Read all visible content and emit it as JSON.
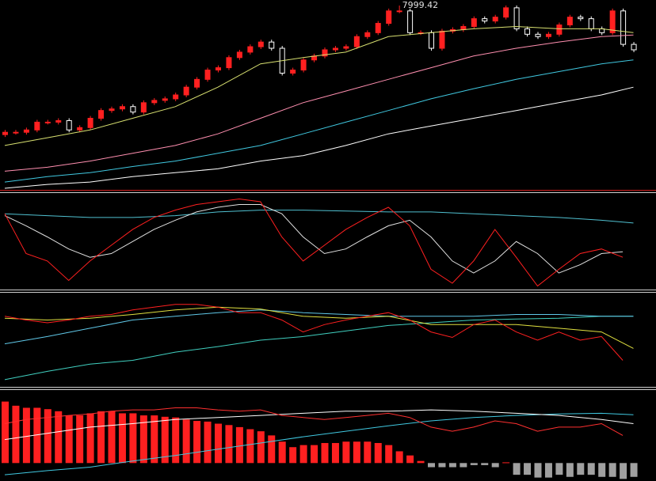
{
  "chart_data": [
    {
      "type": "candlestick",
      "ylim": [
        5650,
        8050
      ],
      "up_color": "#ff2020",
      "down_color": "#ffffff",
      "open": [
        6340,
        6370,
        6370,
        6400,
        6500,
        6500,
        6520,
        6400,
        6430,
        6550,
        6650,
        6670,
        6700,
        6630,
        6750,
        6780,
        6800,
        6850,
        6950,
        7050,
        7170,
        7200,
        7330,
        7400,
        7470,
        7530,
        7450,
        7130,
        7170,
        7300,
        7350,
        7430,
        7450,
        7470,
        7600,
        7650,
        7770,
        7930,
        7930,
        7650,
        7650,
        7450,
        7670,
        7690,
        7730,
        7830,
        7800,
        7850,
        7970,
        7700,
        7630,
        7600,
        7630,
        7750,
        7850,
        7830,
        7700,
        7650,
        7930,
        7500
      ],
      "high": [
        6400,
        6400,
        6430,
        6530,
        6530,
        6550,
        6550,
        6460,
        6580,
        6680,
        6700,
        6730,
        6730,
        6780,
        6810,
        6830,
        6880,
        6980,
        7080,
        7200,
        7230,
        7360,
        7430,
        7500,
        7560,
        7560,
        7480,
        7200,
        7330,
        7380,
        7460,
        7480,
        7500,
        7630,
        7680,
        7800,
        7960,
        7999.42,
        7960,
        7680,
        7680,
        7700,
        7720,
        7760,
        7860,
        7860,
        7880,
        8000,
        8000,
        7730,
        7660,
        7660,
        7780,
        7880,
        7880,
        7860,
        7730,
        7960,
        7960,
        7530
      ],
      "low": [
        6310,
        6340,
        6340,
        6370,
        6470,
        6470,
        6370,
        6370,
        6400,
        6520,
        6620,
        6640,
        6600,
        6600,
        6720,
        6750,
        6770,
        6820,
        6920,
        7020,
        7140,
        7170,
        7300,
        7370,
        7440,
        7420,
        7100,
        7100,
        7140,
        7270,
        7320,
        7400,
        7420,
        7440,
        7570,
        7620,
        7740,
        7900,
        7620,
        7620,
        7420,
        7420,
        7640,
        7660,
        7700,
        7770,
        7770,
        7820,
        7670,
        7600,
        7570,
        7570,
        7600,
        7720,
        7800,
        7670,
        7620,
        7620,
        7470,
        7400
      ],
      "close": [
        6370,
        6370,
        6400,
        6500,
        6500,
        6520,
        6400,
        6430,
        6550,
        6650,
        6670,
        6700,
        6630,
        6750,
        6780,
        6800,
        6850,
        6950,
        7050,
        7170,
        7200,
        7330,
        7400,
        7470,
        7530,
        7450,
        7130,
        7170,
        7300,
        7350,
        7430,
        7450,
        7470,
        7600,
        7650,
        7770,
        7930,
        7930,
        7650,
        7650,
        7450,
        7670,
        7690,
        7730,
        7830,
        7800,
        7850,
        7970,
        7700,
        7630,
        7600,
        7630,
        7750,
        7850,
        7830,
        7700,
        7650,
        7930,
        7500,
        7430
      ],
      "annotations": [
        {
          "label": "7999.42",
          "value": 7999.42,
          "index": 37
        }
      ],
      "series": [
        {
          "color": "#d8e070",
          "x": [
            0,
            4,
            8,
            12,
            16,
            20,
            24,
            28,
            32,
            36,
            40,
            44,
            48,
            52,
            56,
            59
          ],
          "values": [
            6200,
            6300,
            6400,
            6550,
            6700,
            6950,
            7250,
            7330,
            7400,
            7600,
            7650,
            7700,
            7730,
            7700,
            7700,
            7650
          ]
        },
        {
          "color": "#ff8fb0",
          "x": [
            0,
            4,
            8,
            12,
            16,
            20,
            24,
            28,
            32,
            36,
            40,
            44,
            48,
            52,
            56,
            59
          ],
          "values": [
            5870,
            5920,
            6000,
            6100,
            6200,
            6350,
            6550,
            6750,
            6900,
            7050,
            7200,
            7350,
            7450,
            7530,
            7600,
            7620
          ]
        },
        {
          "color": "#40c8e0",
          "x": [
            0,
            4,
            8,
            12,
            16,
            20,
            24,
            28,
            32,
            36,
            40,
            44,
            48,
            52,
            56,
            59
          ],
          "values": [
            5730,
            5800,
            5850,
            5930,
            6000,
            6100,
            6200,
            6350,
            6500,
            6650,
            6800,
            6930,
            7050,
            7150,
            7250,
            7300
          ]
        },
        {
          "color": "#ffffff",
          "x": [
            0,
            4,
            8,
            12,
            16,
            20,
            24,
            28,
            32,
            36,
            40,
            44,
            48,
            52,
            56,
            59
          ],
          "values": [
            5650,
            5700,
            5730,
            5800,
            5850,
            5900,
            6000,
            6070,
            6200,
            6350,
            6450,
            6550,
            6650,
            6750,
            6850,
            6950
          ]
        }
      ]
    },
    {
      "type": "line",
      "ylim": [
        0,
        100
      ],
      "series": [
        {
          "color": "#50c0d0",
          "x": [
            0,
            4,
            8,
            12,
            16,
            20,
            24,
            28,
            32,
            36,
            40,
            44,
            48,
            52,
            56,
            59
          ],
          "values": [
            81,
            79,
            77,
            77,
            79,
            83,
            85,
            85,
            84,
            83,
            83,
            81,
            79,
            77,
            74,
            71
          ]
        },
        {
          "color": "#e0e0e0",
          "x": [
            0,
            2,
            4,
            6,
            8,
            10,
            12,
            14,
            16,
            18,
            20,
            22,
            24,
            26,
            28,
            30,
            32,
            34,
            36,
            38,
            40,
            42,
            44,
            46,
            48,
            50,
            52,
            54,
            56,
            58
          ],
          "values": [
            79,
            68,
            56,
            43,
            34,
            38,
            51,
            64,
            74,
            83,
            88,
            91,
            91,
            81,
            56,
            38,
            43,
            56,
            68,
            74,
            56,
            30,
            17,
            30,
            51,
            38,
            17,
            26,
            38,
            40
          ]
        },
        {
          "color": "#ff2020",
          "x": [
            0,
            2,
            4,
            6,
            8,
            10,
            12,
            14,
            16,
            18,
            20,
            22,
            24,
            26,
            28,
            30,
            32,
            34,
            36,
            38,
            40,
            42,
            44,
            46,
            48,
            50,
            52,
            54,
            56,
            58
          ],
          "values": [
            81,
            38,
            30,
            9,
            30,
            47,
            64,
            77,
            85,
            91,
            94,
            97,
            94,
            56,
            30,
            47,
            64,
            77,
            88,
            68,
            21,
            6,
            30,
            64,
            34,
            3,
            21,
            38,
            43,
            34
          ]
        }
      ]
    },
    {
      "type": "line",
      "ylim": [
        0,
        100
      ],
      "series": [
        {
          "color": "#40d0c0",
          "x": [
            0,
            4,
            8,
            12,
            16,
            20,
            24,
            28,
            32,
            36,
            40,
            44,
            48,
            52,
            56,
            59
          ],
          "values": [
            7,
            16,
            24,
            28,
            37,
            43,
            50,
            54,
            60,
            66,
            69,
            72,
            73,
            74,
            76,
            76
          ]
        },
        {
          "color": "#60c8e8",
          "x": [
            0,
            4,
            8,
            12,
            16,
            20,
            24,
            28,
            32,
            36,
            40,
            44,
            48,
            52,
            56,
            59
          ],
          "values": [
            46,
            54,
            63,
            72,
            76,
            80,
            83,
            80,
            78,
            76,
            76,
            76,
            78,
            78,
            76,
            76
          ]
        },
        {
          "color": "#e0e040",
          "x": [
            0,
            4,
            8,
            12,
            16,
            20,
            24,
            28,
            32,
            36,
            40,
            44,
            48,
            52,
            56,
            59
          ],
          "values": [
            74,
            72,
            74,
            78,
            83,
            86,
            84,
            76,
            74,
            76,
            67,
            67,
            67,
            63,
            59,
            41
          ]
        },
        {
          "color": "#ff2020",
          "x": [
            0,
            2,
            4,
            6,
            8,
            10,
            12,
            14,
            16,
            18,
            20,
            22,
            24,
            26,
            28,
            30,
            32,
            34,
            36,
            38,
            40,
            42,
            44,
            46,
            48,
            50,
            52,
            54,
            56,
            58
          ],
          "values": [
            76,
            72,
            69,
            72,
            76,
            78,
            83,
            86,
            89,
            89,
            86,
            80,
            80,
            72,
            59,
            67,
            72,
            76,
            80,
            72,
            59,
            53,
            67,
            72,
            59,
            50,
            59,
            50,
            54,
            28
          ]
        }
      ]
    },
    {
      "type": "bar",
      "ylim": [
        -26,
        100
      ],
      "up_color": "#ff2020",
      "down_color": "#a0a0a0",
      "values": [
        89,
        83,
        80,
        80,
        78,
        75,
        69,
        69,
        72,
        75,
        75,
        72,
        72,
        69,
        69,
        67,
        66,
        63,
        61,
        60,
        57,
        55,
        52,
        49,
        46,
        40,
        31,
        23,
        26,
        26,
        29,
        29,
        31,
        31,
        31,
        29,
        26,
        17,
        11,
        3,
        -6,
        -6,
        -6,
        -6,
        -3,
        -3,
        -6,
        1,
        -17,
        -17,
        -21,
        -21,
        -17,
        -20,
        -17,
        -17,
        -20,
        -20,
        -23,
        -20
      ],
      "series": [
        {
          "color": "#40c8e0",
          "x": [
            0,
            4,
            8,
            12,
            16,
            20,
            24,
            28,
            32,
            36,
            40,
            44,
            48,
            52,
            56,
            59
          ],
          "values": [
            -17,
            -11,
            -6,
            3,
            11,
            20,
            29,
            38,
            46,
            54,
            61,
            66,
            69,
            71,
            72,
            70
          ]
        },
        {
          "color": "#ffffff",
          "x": [
            0,
            4,
            8,
            12,
            16,
            20,
            24,
            28,
            32,
            36,
            40,
            44,
            48,
            52,
            56,
            59
          ],
          "values": [
            34,
            43,
            52,
            57,
            63,
            66,
            69,
            72,
            75,
            75,
            77,
            75,
            72,
            69,
            63,
            57
          ]
        },
        {
          "color": "#ff3030",
          "x": [
            0,
            2,
            4,
            6,
            8,
            10,
            12,
            14,
            16,
            18,
            20,
            22,
            24,
            26,
            28,
            30,
            32,
            34,
            36,
            38,
            40,
            42,
            44,
            46,
            48,
            50,
            52,
            54,
            56,
            58
          ],
          "values": [
            57,
            63,
            66,
            69,
            71,
            75,
            77,
            77,
            80,
            80,
            77,
            75,
            77,
            69,
            66,
            63,
            66,
            69,
            72,
            66,
            52,
            46,
            52,
            61,
            57,
            46,
            52,
            52,
            57,
            40
          ]
        }
      ]
    }
  ]
}
